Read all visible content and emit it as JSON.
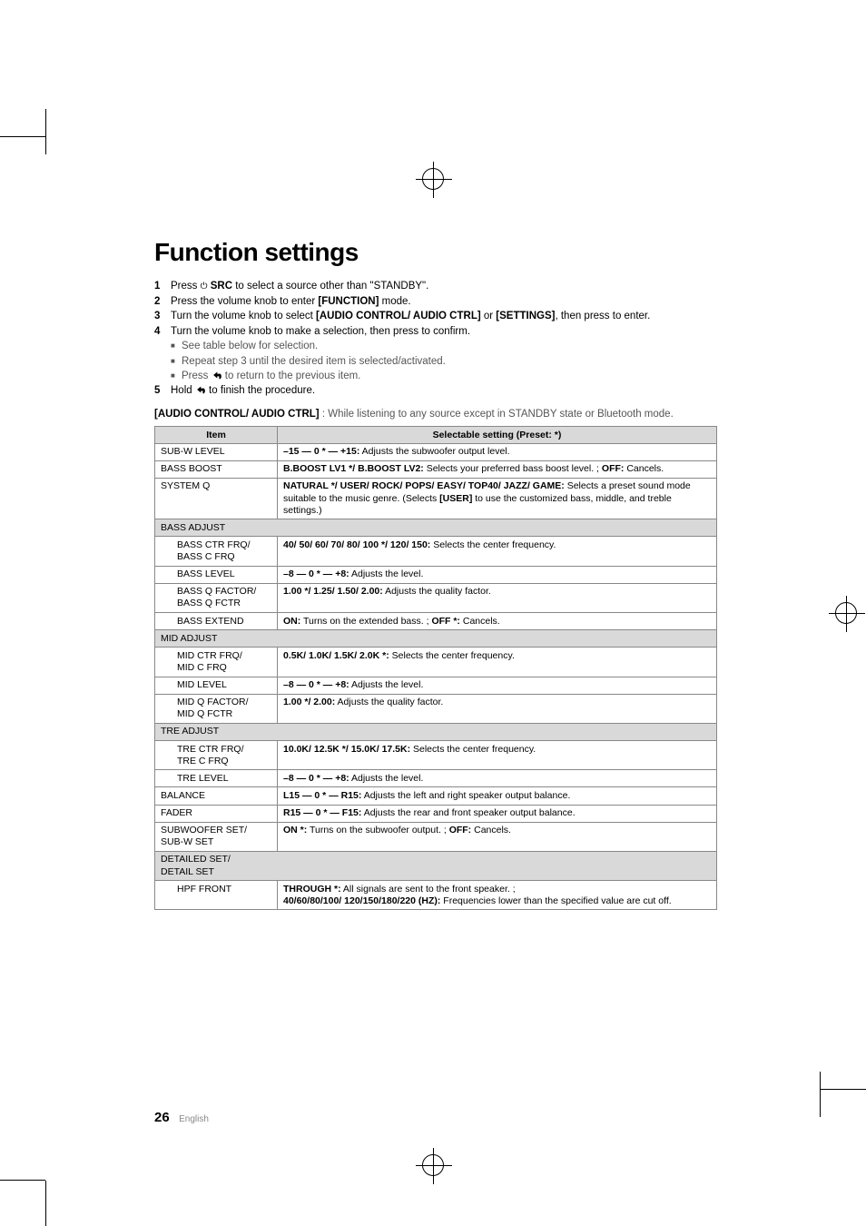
{
  "title": "Function settings",
  "title_fontsize": 28,
  "body_fontsize": 11.5,
  "table_fontsize": 10.5,
  "steps": [
    {
      "num": "1",
      "html": "Press <span class='power-icon'>⏻</span> <b>SRC</b> to select a source other than \"STANDBY\"."
    },
    {
      "num": "2",
      "html": "Press the volume knob to enter <b>[FUNCTION]</b> mode."
    },
    {
      "num": "3",
      "html": "Turn the volume knob to select <b>[AUDIO CONTROL/ AUDIO CTRL]</b> or <b>[SETTINGS]</b>, then press to enter."
    },
    {
      "num": "4",
      "html": "Turn the volume knob to make a selection, then press to confirm."
    }
  ],
  "sub_bullets": [
    "See table below for selection.",
    "Repeat step 3 until the desired item is selected/activated.",
    "Press <BACK> to return to the previous item."
  ],
  "step5": "Hold <BACK> to finish the procedure.",
  "section_lead_bold": "[AUDIO CONTROL/ AUDIO CTRL]",
  "section_lead_rest": " : While listening to any source except in STANDBY state or Bluetooth mode.",
  "table": {
    "headers": [
      "Item",
      "Selectable setting (Preset: *)"
    ],
    "rows": [
      {
        "type": "normal",
        "item": "SUB-W LEVEL",
        "setting": "<b>–15 — 0 * — +15:</b> Adjusts the subwoofer output level."
      },
      {
        "type": "normal",
        "item": "BASS BOOST",
        "setting": "<b>B.BOOST LV1 */ B.BOOST LV2:</b> Selects your preferred bass boost level. ; <b>OFF:</b> Cancels."
      },
      {
        "type": "normal",
        "item": "SYSTEM Q",
        "setting": "<b>NATURAL */ USER/ ROCK/ POPS/ EASY/ TOP40/ JAZZ/ GAME:</b> Selects a preset sound mode suitable to the music genre. (Selects <b>[USER]</b> to use the customized bass, middle, and treble settings.)"
      },
      {
        "type": "header",
        "item": "BASS ADJUST"
      },
      {
        "type": "sub",
        "item": "BASS CTR FRQ/<br>BASS C FRQ",
        "setting": "<b>40/ 50/ 60/ 70/ 80/ 100 */ 120/ 150:</b> Selects the center frequency."
      },
      {
        "type": "sub",
        "item": "BASS LEVEL",
        "setting": "<b>–8 — 0 * — +8:</b> Adjusts the level."
      },
      {
        "type": "sub",
        "item": "BASS Q FACTOR/<br>BASS Q FCTR",
        "setting": "<b>1.00 */ 1.25/ 1.50/ 2.00:</b> Adjusts the quality factor."
      },
      {
        "type": "sub",
        "item": "BASS EXTEND",
        "setting": "<b>ON:</b> Turns on the extended bass. ; <b>OFF *:</b> Cancels."
      },
      {
        "type": "header",
        "item": "MID ADJUST"
      },
      {
        "type": "sub",
        "item": "MID CTR FRQ/<br>MID C FRQ",
        "setting": "<b>0.5K/ 1.0K/ 1.5K/ 2.0K *:</b> Selects the center frequency."
      },
      {
        "type": "sub",
        "item": "MID LEVEL",
        "setting": "<b>–8 — 0 * — +8:</b> Adjusts the level."
      },
      {
        "type": "sub",
        "item": "MID Q FACTOR/<br>MID Q FCTR",
        "setting": "<b>1.00 */ 2.00:</b> Adjusts the quality factor."
      },
      {
        "type": "header",
        "item": "TRE ADJUST"
      },
      {
        "type": "sub",
        "item": "TRE CTR FRQ/<br>TRE C FRQ",
        "setting": "<b>10.0K/ 12.5K */ 15.0K/ 17.5K:</b> Selects the center frequency."
      },
      {
        "type": "sub",
        "item": "TRE LEVEL",
        "setting": "<b>–8 — 0 * — +8:</b> Adjusts the level."
      },
      {
        "type": "normal",
        "item": "BALANCE",
        "setting": "<b>L15 — 0 * — R15:</b> Adjusts the left and right speaker output balance."
      },
      {
        "type": "normal",
        "item": "FADER",
        "setting": "<b>R15 — 0 * — F15:</b> Adjusts the rear and front speaker output balance."
      },
      {
        "type": "normal",
        "item": "SUBWOOFER SET/<br>SUB-W SET",
        "setting": "<b>ON *:</b> Turns on the subwoofer output. ; <b>OFF:</b> Cancels."
      },
      {
        "type": "header",
        "item": "DETAILED SET/<br>DETAIL SET"
      },
      {
        "type": "sub",
        "item": "HPF FRONT",
        "setting": "<b>THROUGH *:</b> All signals are sent to the front speaker. ;<br><b>40/60/80/100/ 120/150/180/220 (HZ):</b> Frequencies lower than the specified value are cut off."
      }
    ]
  },
  "page_number": "26",
  "page_lang": "English",
  "colors": {
    "background": "#ffffff",
    "text": "#000000",
    "muted_text": "#555555",
    "table_header_bg": "#d9d9d9",
    "table_border": "#888888",
    "page_lang_color": "#888888"
  }
}
